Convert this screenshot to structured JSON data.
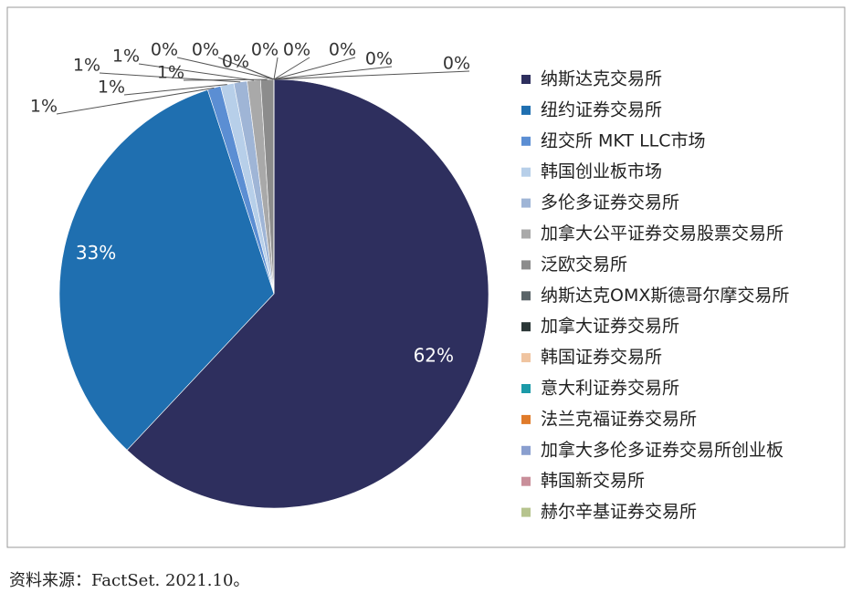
{
  "chart_data": {
    "type": "pie",
    "source": "资料来源：FactSet. 2021.10。",
    "series": [
      {
        "name": "纳斯达克交易所",
        "color": "#2e2f5e",
        "values": [
          62
        ],
        "value_labels": [
          "62%"
        ]
      },
      {
        "name": "纽约证券交易所",
        "color": "#1f6fb0",
        "values": [
          33
        ],
        "value_labels": [
          "33%"
        ]
      },
      {
        "name": "纽交所 MKT LLC市场",
        "color": "#5b8ed3",
        "values": [
          1
        ],
        "value_labels": [
          "1%"
        ]
      },
      {
        "name": "韩国创业板市场",
        "color": "#b7cfe9",
        "values": [
          1
        ],
        "value_labels": [
          "1%"
        ]
      },
      {
        "name": "多伦多证券交易所",
        "color": "#9fb5d6",
        "values": [
          1
        ],
        "value_labels": [
          "1%"
        ]
      },
      {
        "name": "加拿大公平证券交易股票交易所",
        "color": "#a9a9a9",
        "values": [
          1
        ],
        "value_labels": [
          "1%"
        ]
      },
      {
        "name": "泛欧交易所",
        "color": "#8c8c8c",
        "values": [
          1
        ],
        "value_labels": [
          "1%"
        ]
      },
      {
        "name": "纳斯达克OMX斯德哥尔摩交易所",
        "color": "#5a6468",
        "values": [
          0
        ],
        "value_labels": [
          "0%"
        ]
      },
      {
        "name": "加拿大证券交易所",
        "color": "#2a3636",
        "values": [
          0
        ],
        "value_labels": [
          "0%"
        ]
      },
      {
        "name": "韩国证券交易所",
        "color": "#f0c4a0",
        "values": [
          0
        ],
        "value_labels": [
          "0%"
        ]
      },
      {
        "name": "意大利证券交易所",
        "color": "#1b9aa8",
        "values": [
          0
        ],
        "value_labels": [
          "0%"
        ]
      },
      {
        "name": "法兰克福证券交易所",
        "color": "#e07b2a",
        "values": [
          0
        ],
        "value_labels": [
          "0%"
        ]
      },
      {
        "name": "加拿大多伦多证券交易所创业板",
        "color": "#8a9fcf",
        "values": [
          0
        ],
        "value_labels": [
          "0%"
        ]
      },
      {
        "name": "韩国新交易所",
        "color": "#c98f9a",
        "values": [
          0
        ],
        "value_labels": [
          "0%"
        ]
      },
      {
        "name": "赫尔辛基证券交易所",
        "color": "#b6c48e",
        "values": [
          0
        ],
        "value_labels": [
          "0%"
        ]
      }
    ]
  }
}
